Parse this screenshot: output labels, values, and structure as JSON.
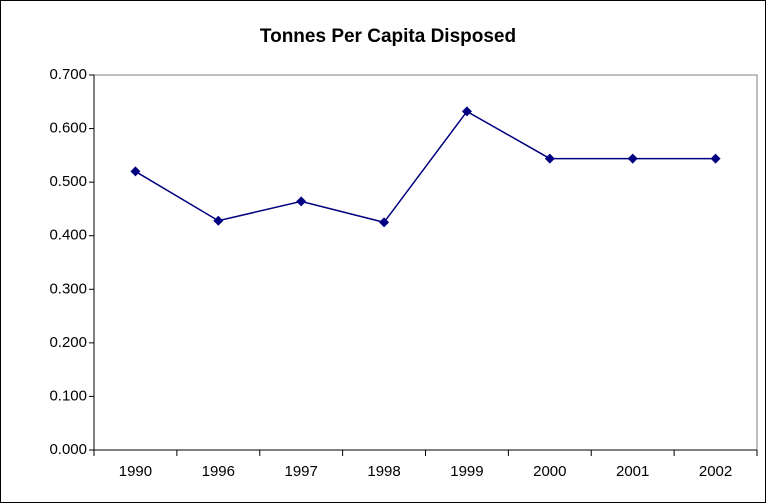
{
  "chart_data": {
    "type": "line",
    "title": "Tonnes Per Capita Disposed",
    "categories": [
      "1990",
      "1996",
      "1997",
      "1998",
      "1999",
      "2000",
      "2001",
      "2002"
    ],
    "series": [
      {
        "name": "Tonnes Per Capita Disposed",
        "color": "#000080",
        "values": [
          0.52,
          0.428,
          0.464,
          0.425,
          0.632,
          0.544,
          0.544,
          0.544
        ]
      }
    ],
    "ylim": [
      0,
      0.7
    ],
    "yticks": [
      {
        "value": 0,
        "label": "0.000"
      },
      {
        "value": 0.1,
        "label": "0.100"
      },
      {
        "value": 0.2,
        "label": "0.200"
      },
      {
        "value": 0.3,
        "label": "0.300"
      },
      {
        "value": 0.4,
        "label": "0.400"
      },
      {
        "value": 0.5,
        "label": "0.500"
      },
      {
        "value": 0.6,
        "label": "0.600"
      },
      {
        "value": 0.7,
        "label": "0.700"
      }
    ],
    "grid": false
  }
}
